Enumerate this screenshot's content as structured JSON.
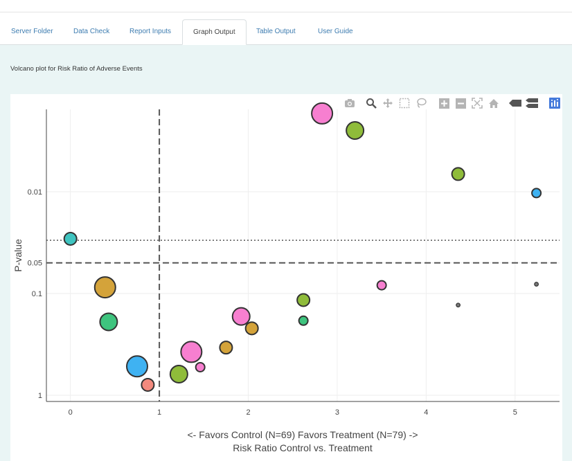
{
  "tabs": [
    {
      "label": "Server Folder",
      "active": false
    },
    {
      "label": "Data Check",
      "active": false
    },
    {
      "label": "Report Inputs",
      "active": false
    },
    {
      "label": "Graph Output",
      "active": true
    },
    {
      "label": "Table Output",
      "active": false
    },
    {
      "label": "User Guide",
      "active": false
    }
  ],
  "page": {
    "title": "Volcano plot for Risk Ratio of Adverse Events"
  },
  "modebar": {
    "icons": [
      "camera-icon",
      "zoom-icon",
      "pan-icon",
      "box-select-icon",
      "lasso-icon",
      "zoom-in-icon",
      "zoom-out-icon",
      "autoscale-icon",
      "home-icon",
      "hover-closest-icon",
      "hover-compare-icon",
      "plotly-logo-icon"
    ]
  },
  "chart_data": {
    "type": "scatter",
    "title": "",
    "xlabel_line1": "<- Favors Control (N=69) Favors Treatment (N=79) ->",
    "xlabel_line2": "Risk Ratio Control vs. Treatment",
    "ylabel": "P-value",
    "y_scale": "log (reversed)",
    "xlim": [
      -0.27,
      5.5
    ],
    "x_ticks": [
      0,
      1,
      2,
      3,
      4,
      5
    ],
    "x_tick_labels": [
      "0",
      "1",
      "2",
      "3",
      "4",
      "5"
    ],
    "y_ticks": [
      0.01,
      0.05,
      0.1,
      1
    ],
    "y_tick_labels": [
      "0.01",
      "0.05",
      "0.1",
      "1"
    ],
    "reference_lines": [
      {
        "axis": "x",
        "value": 1,
        "style": "dashed"
      },
      {
        "axis": "y",
        "value": 0.05,
        "style": "dashed"
      },
      {
        "axis": "y",
        "value": 0.03,
        "style": "dotted"
      }
    ],
    "grid": true,
    "points": [
      {
        "x": 2.83,
        "y": 0.0017,
        "size": "large",
        "color": "#f77fd0"
      },
      {
        "x": 3.2,
        "y": 0.0025,
        "size": "medium",
        "color": "#8fbc3a"
      },
      {
        "x": 4.36,
        "y": 0.0067,
        "size": "small",
        "color": "#8fbc3a"
      },
      {
        "x": 5.24,
        "y": 0.0103,
        "size": "tiny",
        "color": "#3fb2f2"
      },
      {
        "x": 0.0,
        "y": 0.029,
        "size": "small",
        "color": "#3fc4c0"
      },
      {
        "x": 0.39,
        "y": 0.087,
        "size": "large",
        "color": "#d4a33a"
      },
      {
        "x": 3.5,
        "y": 0.083,
        "size": "tiny",
        "color": "#f77fd0"
      },
      {
        "x": 5.24,
        "y": 0.081,
        "size": "dot",
        "color": "#777777"
      },
      {
        "x": 4.36,
        "y": 0.13,
        "size": "dot",
        "color": "#777777"
      },
      {
        "x": 2.62,
        "y": 0.116,
        "size": "small",
        "color": "#8fbc3a"
      },
      {
        "x": 2.62,
        "y": 0.185,
        "size": "tiny",
        "color": "#3ec47e"
      },
      {
        "x": 0.43,
        "y": 0.19,
        "size": "medium",
        "color": "#3ec47e"
      },
      {
        "x": 1.92,
        "y": 0.168,
        "size": "medium",
        "color": "#f77fd0"
      },
      {
        "x": 2.04,
        "y": 0.22,
        "size": "small",
        "color": "#d4a33a"
      },
      {
        "x": 1.75,
        "y": 0.34,
        "size": "small",
        "color": "#d4a33a"
      },
      {
        "x": 1.36,
        "y": 0.375,
        "size": "large",
        "color": "#f77fd0"
      },
      {
        "x": 0.75,
        "y": 0.52,
        "size": "large",
        "color": "#3fb2f2"
      },
      {
        "x": 1.46,
        "y": 0.53,
        "size": "tiny",
        "color": "#f77fd0"
      },
      {
        "x": 1.22,
        "y": 0.62,
        "size": "medium",
        "color": "#8fbc3a"
      },
      {
        "x": 0.87,
        "y": 0.79,
        "size": "small",
        "color": "#f38a7e"
      }
    ]
  }
}
